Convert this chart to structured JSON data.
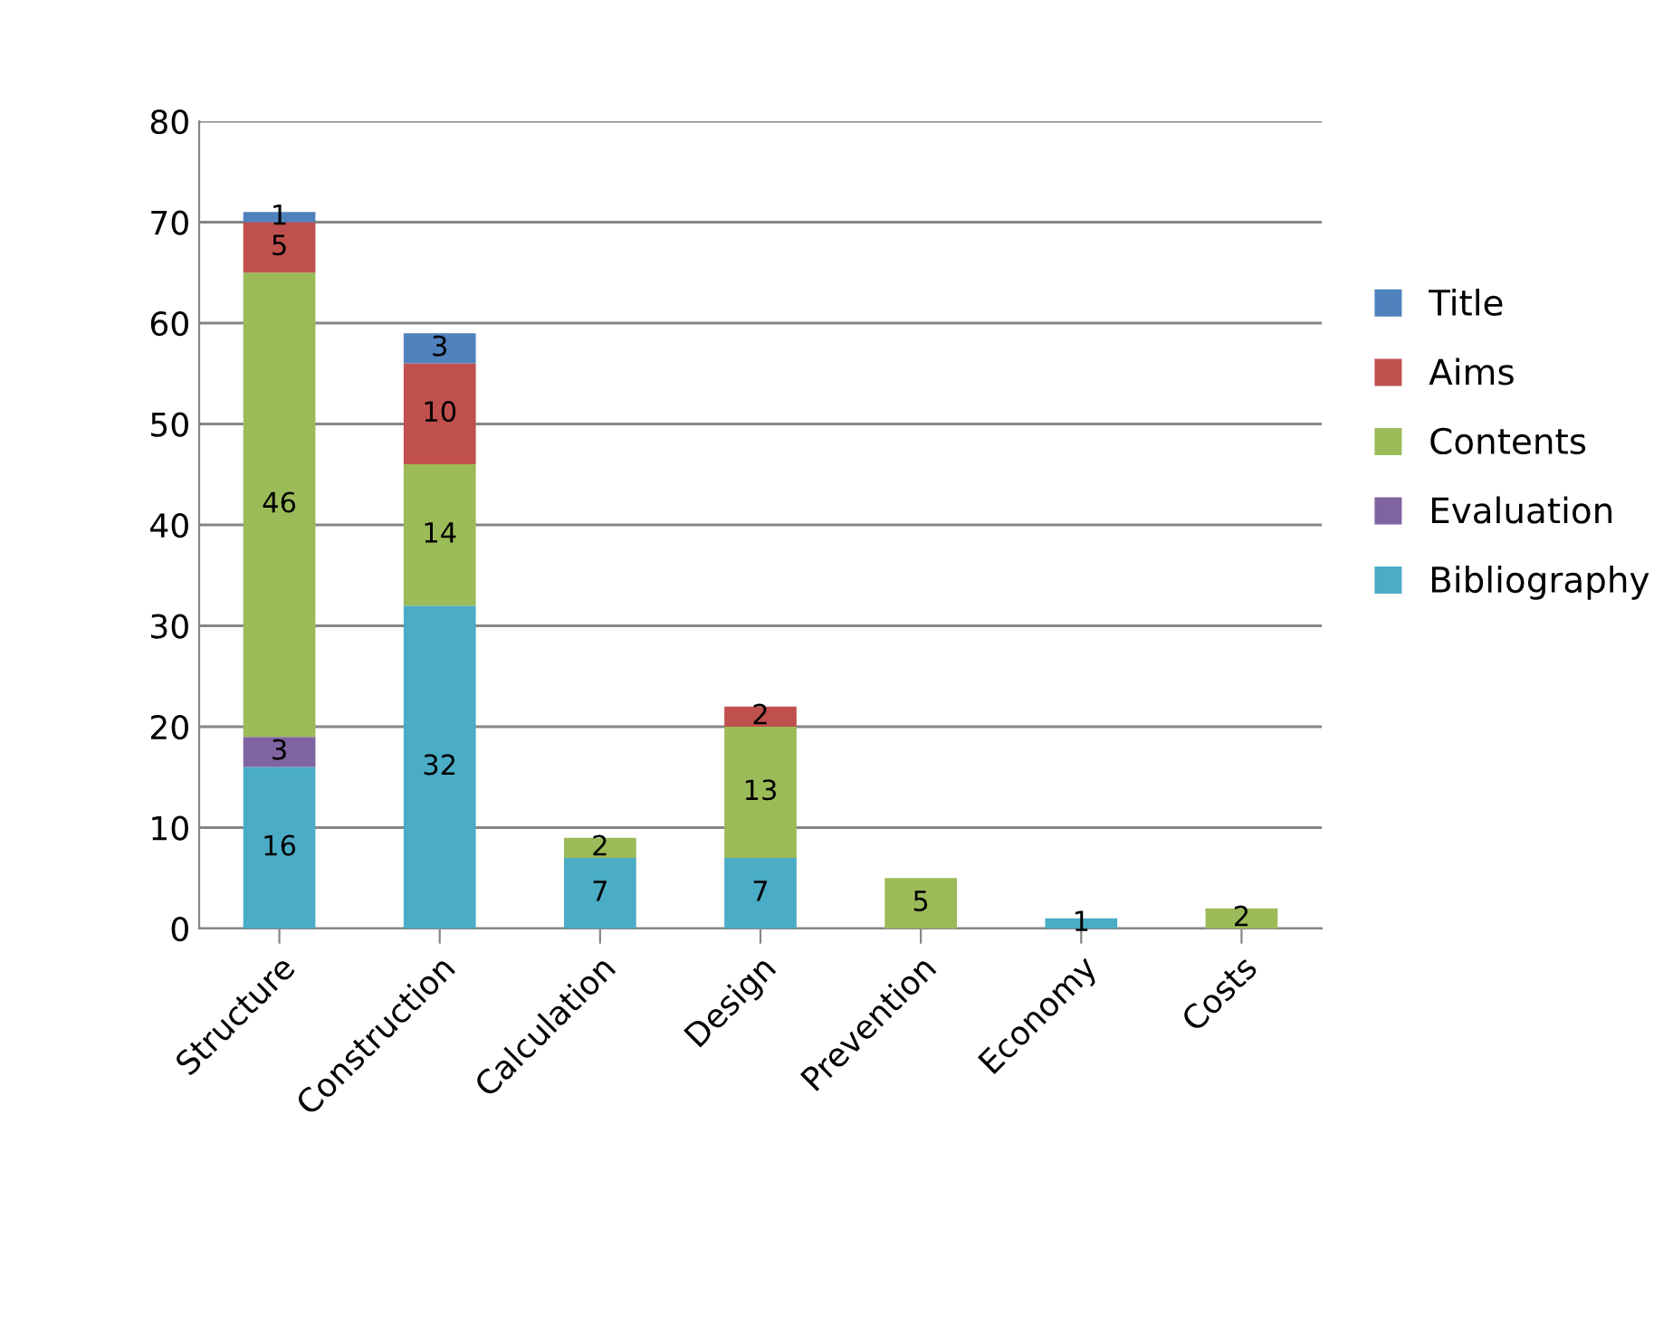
{
  "chart_data": {
    "type": "bar",
    "stacked": true,
    "categories": [
      "Structure",
      "Construction",
      "Calculation",
      "Design",
      "Prevention",
      "Economy",
      "Costs"
    ],
    "series": [
      {
        "name": "Bibliography",
        "color": "#4bacc6",
        "values": [
          16,
          32,
          7,
          7,
          null,
          1,
          null
        ]
      },
      {
        "name": "Evaluation",
        "color": "#8064a2",
        "values": [
          3,
          null,
          null,
          null,
          null,
          null,
          null
        ]
      },
      {
        "name": "Contents",
        "color": "#9bbb59",
        "values": [
          46,
          14,
          2,
          13,
          5,
          null,
          2
        ]
      },
      {
        "name": "Aims",
        "color": "#c0504d",
        "values": [
          5,
          10,
          null,
          2,
          null,
          null,
          null
        ]
      },
      {
        "name": "Title",
        "color": "#4f81bd",
        "values": [
          1,
          3,
          null,
          null,
          null,
          null,
          null
        ]
      }
    ],
    "ylim": [
      0,
      80
    ],
    "yticks": [
      0,
      10,
      20,
      30,
      40,
      50,
      60,
      70,
      80
    ],
    "grid": "y",
    "legend": "right",
    "data_labels": true
  }
}
